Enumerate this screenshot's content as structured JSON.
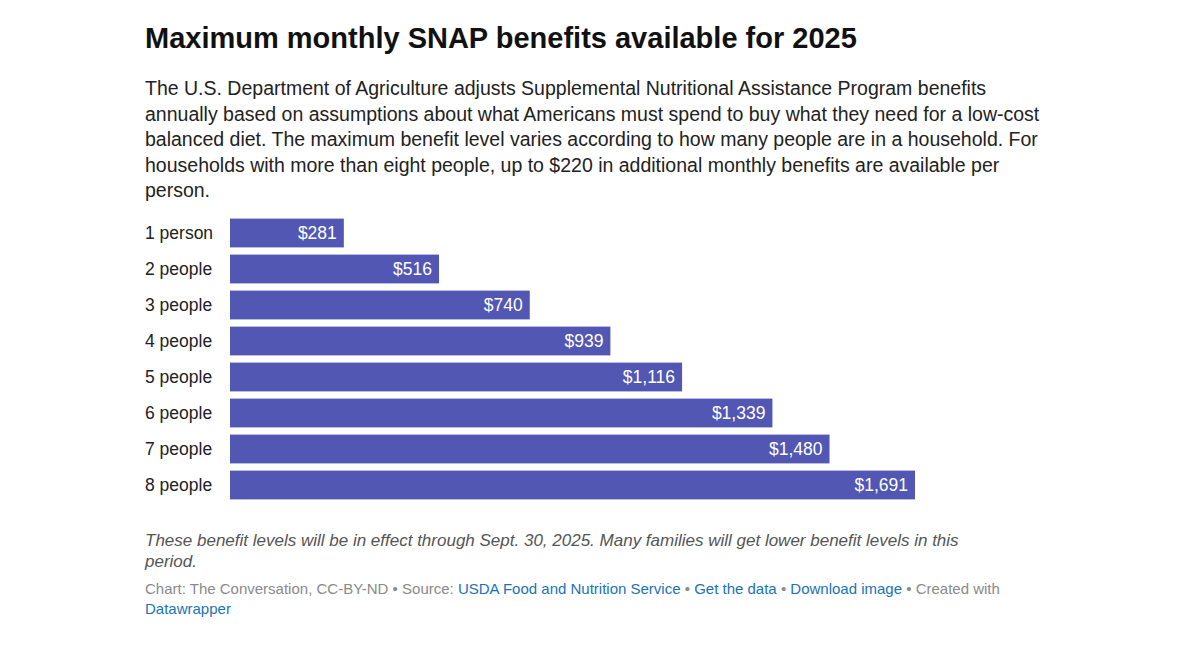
{
  "chart_data": {
    "type": "bar",
    "orientation": "horizontal",
    "title": "Maximum monthly SNAP benefits available for 2025",
    "subtitle": "The U.S. Department of Agriculture adjusts Supplemental Nutritional Assistance Program benefits annually based on assumptions about what Americans must spend to buy what they need for a low-cost balanced diet. The maximum benefit level varies according to how many people are in a household. For households with more than eight people, up to $220 in additional monthly benefits are available per person.",
    "categories": [
      "1 person",
      "2 people",
      "3 people",
      "4 people",
      "5 people",
      "6 people",
      "7 people",
      "8 people"
    ],
    "values": [
      281,
      516,
      740,
      939,
      1116,
      1339,
      1480,
      1691
    ],
    "value_labels": [
      "$281",
      "$516",
      "$740",
      "$939",
      "$1,116",
      "$1,339",
      "$1,480",
      "$1,691"
    ],
    "color": "#5157b3",
    "data_labels": true,
    "tick_labels": "y",
    "grid": false,
    "notes": "These benefit levels will be in effect through Sept. 30, 2025. Many families will get lower benefit levels in this period.",
    "footer": {
      "credit": "Chart: The Conversation, CC-BY-ND",
      "separator": "•",
      "source_label": "Source:",
      "source": "USDA Food and Nutrition Service",
      "links": [
        "Get the data",
        "Download image"
      ],
      "created": "Created with",
      "tool": "Datawrapper"
    }
  }
}
